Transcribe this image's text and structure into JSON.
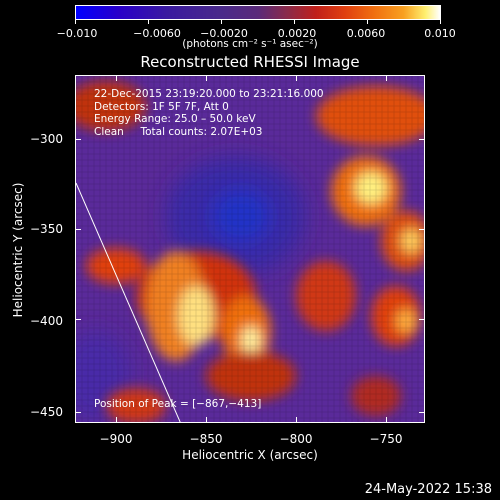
{
  "colorbar": {
    "tick_labels": [
      "−0.010",
      "−0.0060",
      "−0.0020",
      "0.0020",
      "0.0060",
      "0.010"
    ],
    "units": "(photons cm⁻² s⁻¹ asec⁻²)"
  },
  "title": "Reconstructed RHESSI Image",
  "info": {
    "line1": "22-Dec-2015 23:19:20.000 to 23:21:16.000",
    "line2": "Detectors: 1F 5F 7F, Att 0",
    "line3": "Energy Range: 25.0 – 50.0 keV",
    "line4": "Clean     Total counts: 2.07E+03",
    "peak": "Position of Peak = [−867,−413]"
  },
  "axes": {
    "xlabel": "Heliocentric X (arcsec)",
    "ylabel": "Heliocentric Y (arcsec)",
    "xticks": [
      "−900",
      "−850",
      "−800",
      "−750"
    ],
    "yticks": [
      "−300",
      "−350",
      "−400",
      "−450"
    ]
  },
  "datestamp": "24-May-2022 15:38"
}
